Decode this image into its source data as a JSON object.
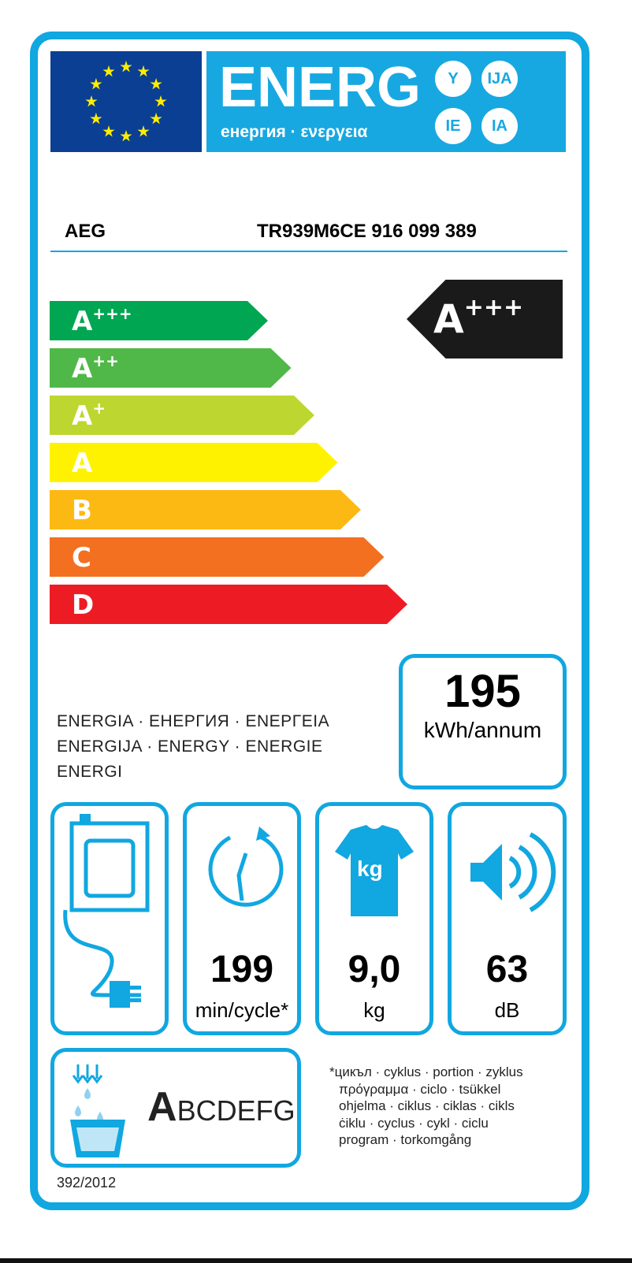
{
  "header": {
    "logo_text": "ENERG",
    "endings": [
      "Y",
      "IJA",
      "IE",
      "IA"
    ],
    "subtitle": "енергия · ενεργεια"
  },
  "product": {
    "brand": "AEG",
    "model": "TR939M6CE  916 099 389"
  },
  "scale": [
    {
      "label": "A",
      "sup": "+++",
      "color": "#00a651"
    },
    {
      "label": "A",
      "sup": "++",
      "color": "#50b848"
    },
    {
      "label": "A",
      "sup": "+",
      "color": "#bed630"
    },
    {
      "label": "A",
      "sup": "",
      "color": "#fff200"
    },
    {
      "label": "B",
      "sup": "",
      "color": "#fdb913"
    },
    {
      "label": "C",
      "sup": "",
      "color": "#f37021"
    },
    {
      "label": "D",
      "sup": "",
      "color": "#ed1c24"
    }
  ],
  "rating": {
    "label": "A",
    "sup": "+++"
  },
  "energy": {
    "value": "195",
    "unit": "kWh/annum",
    "labels": [
      "ENERGIA · ЕНЕРГИЯ · ΕΝΕΡΓΕΙΑ",
      "ENERGIJA · ENERGY · ENERGIE",
      "ENERGI"
    ]
  },
  "specs": {
    "cycle": {
      "value": "199",
      "unit": "min/cycle*"
    },
    "capacity": {
      "value": "9,0",
      "unit": "kg",
      "icon_text": "kg"
    },
    "noise": {
      "value": "63",
      "unit": "dB"
    }
  },
  "condensation": {
    "first": "A",
    "rest": "BCDEFG"
  },
  "footnote": [
    "*цикъл · cyklus · portion · zyklus",
    "πρόγραμμα · ciclo · tsükkel",
    "ohjelma · ciklus · ciklas · cikls",
    "ċiklu · cyclus · cykl · ciclu",
    "program · torkomgång"
  ],
  "regulation": "392/2012",
  "colors": {
    "accent": "#11a7e0",
    "eu_blue": "#0a3f93"
  }
}
